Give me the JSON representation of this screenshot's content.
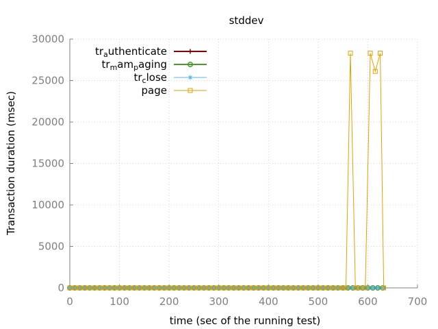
{
  "chart_data": {
    "type": "line",
    "title": "stddev",
    "xlabel": "time (sec of the running test)",
    "ylabel": "Transaction duration (msec)",
    "xlim": [
      0,
      700
    ],
    "ylim": [
      0,
      30000
    ],
    "xticks": [
      0,
      100,
      200,
      300,
      400,
      500,
      600,
      700
    ],
    "yticks": [
      0,
      5000,
      10000,
      15000,
      20000,
      25000,
      30000
    ],
    "grid": true,
    "legend_position": "top-left",
    "series": [
      {
        "name": "tr_authenticate",
        "legend_parts": [
          {
            "t": "tr",
            "sub": false
          },
          {
            "t": "a",
            "sub": true
          },
          {
            "t": "uthenticate",
            "sub": false
          }
        ],
        "color": "#8b0000",
        "marker": "plus",
        "x": [
          0,
          10,
          20,
          30,
          40,
          50,
          60,
          70,
          80,
          90,
          100,
          110,
          120,
          130,
          140,
          150,
          160,
          170,
          180,
          190,
          200,
          210,
          220,
          230,
          240,
          250,
          260,
          270,
          280,
          290,
          300,
          310,
          320,
          330,
          340,
          350,
          360,
          370,
          380,
          390,
          400,
          410,
          420,
          430,
          440,
          450,
          460,
          470,
          480,
          490,
          500,
          510,
          520,
          530,
          540,
          550,
          560
        ],
        "y": [
          0,
          0,
          0,
          0,
          0,
          0,
          0,
          0,
          0,
          0,
          0,
          0,
          0,
          0,
          0,
          0,
          0,
          0,
          0,
          0,
          0,
          0,
          0,
          0,
          0,
          0,
          0,
          0,
          0,
          0,
          0,
          0,
          0,
          0,
          0,
          0,
          0,
          0,
          0,
          0,
          0,
          0,
          0,
          0,
          0,
          0,
          0,
          0,
          0,
          0,
          0,
          0,
          0,
          0,
          0,
          0,
          0
        ]
      },
      {
        "name": "tr_mam_paging",
        "legend_parts": [
          {
            "t": "tr",
            "sub": false
          },
          {
            "t": "m",
            "sub": true
          },
          {
            "t": "am",
            "sub": false
          },
          {
            "t": "p",
            "sub": true
          },
          {
            "t": "aging",
            "sub": false
          }
        ],
        "color": "#4c9a2a",
        "marker": "circle",
        "x": [
          0,
          10,
          20,
          30,
          40,
          50,
          60,
          70,
          80,
          90,
          100,
          110,
          120,
          130,
          140,
          150,
          160,
          170,
          180,
          190,
          200,
          210,
          220,
          230,
          240,
          250,
          260,
          270,
          280,
          290,
          300,
          310,
          320,
          330,
          340,
          350,
          360,
          370,
          380,
          390,
          400,
          410,
          420,
          430,
          440,
          450,
          460,
          470,
          480,
          490,
          500,
          510,
          520,
          530,
          540,
          550,
          560,
          570,
          580,
          590,
          600,
          610,
          620,
          630
        ],
        "y": [
          0,
          0,
          0,
          0,
          0,
          0,
          0,
          0,
          0,
          0,
          0,
          0,
          0,
          0,
          0,
          0,
          0,
          0,
          0,
          0,
          0,
          0,
          0,
          0,
          0,
          0,
          0,
          0,
          0,
          0,
          0,
          0,
          0,
          0,
          0,
          0,
          0,
          0,
          0,
          0,
          0,
          0,
          0,
          0,
          0,
          0,
          0,
          0,
          0,
          0,
          0,
          0,
          0,
          0,
          0,
          0,
          0,
          0,
          0,
          0,
          0,
          0,
          0,
          0
        ]
      },
      {
        "name": "tr_close",
        "legend_parts": [
          {
            "t": "tr",
            "sub": false
          },
          {
            "t": "c",
            "sub": true
          },
          {
            "t": "lose",
            "sub": false
          }
        ],
        "color": "#56b4e9",
        "marker": "star",
        "x": [
          0,
          10,
          20,
          30,
          40,
          50,
          60,
          70,
          80,
          90,
          100,
          110,
          120,
          130,
          140,
          150,
          160,
          170,
          180,
          190,
          200,
          210,
          220,
          230,
          240,
          250,
          260,
          270,
          280,
          290,
          300,
          310,
          320,
          330,
          340,
          350,
          360,
          370,
          380,
          390,
          400,
          410,
          420,
          430,
          440,
          450,
          460,
          470,
          480,
          490,
          500,
          510,
          520,
          530,
          540,
          550,
          560,
          570,
          580,
          590,
          600,
          610,
          620,
          630
        ],
        "y": [
          0,
          0,
          0,
          0,
          0,
          0,
          0,
          0,
          0,
          0,
          0,
          0,
          0,
          0,
          0,
          0,
          0,
          0,
          0,
          0,
          0,
          0,
          0,
          0,
          0,
          0,
          0,
          0,
          0,
          0,
          0,
          0,
          0,
          0,
          0,
          0,
          0,
          0,
          0,
          0,
          0,
          0,
          0,
          0,
          0,
          0,
          0,
          0,
          0,
          0,
          0,
          0,
          0,
          0,
          0,
          0,
          0,
          0,
          0,
          0,
          0,
          0,
          0,
          0
        ]
      },
      {
        "name": "page",
        "legend_parts": [
          {
            "t": "page",
            "sub": false
          }
        ],
        "color": "#e69f00",
        "marker": "square",
        "x": [
          0,
          10,
          20,
          30,
          40,
          50,
          60,
          70,
          80,
          90,
          100,
          110,
          120,
          130,
          140,
          150,
          160,
          170,
          180,
          190,
          200,
          210,
          220,
          230,
          240,
          250,
          260,
          270,
          280,
          290,
          300,
          310,
          320,
          330,
          340,
          350,
          360,
          370,
          380,
          390,
          400,
          410,
          420,
          430,
          440,
          450,
          460,
          470,
          480,
          490,
          500,
          510,
          520,
          530,
          540,
          550,
          556,
          565,
          575,
          583,
          595,
          605,
          615,
          625,
          632
        ],
        "y": [
          0,
          0,
          0,
          0,
          0,
          0,
          0,
          0,
          0,
          0,
          0,
          0,
          0,
          0,
          0,
          0,
          0,
          0,
          0,
          0,
          0,
          0,
          0,
          0,
          0,
          0,
          0,
          0,
          0,
          0,
          0,
          0,
          0,
          0,
          0,
          0,
          0,
          0,
          0,
          0,
          0,
          0,
          0,
          0,
          0,
          0,
          0,
          0,
          0,
          0,
          0,
          0,
          0,
          0,
          0,
          0,
          0,
          28300,
          0,
          0,
          0,
          28300,
          26100,
          28300,
          0
        ]
      }
    ]
  }
}
